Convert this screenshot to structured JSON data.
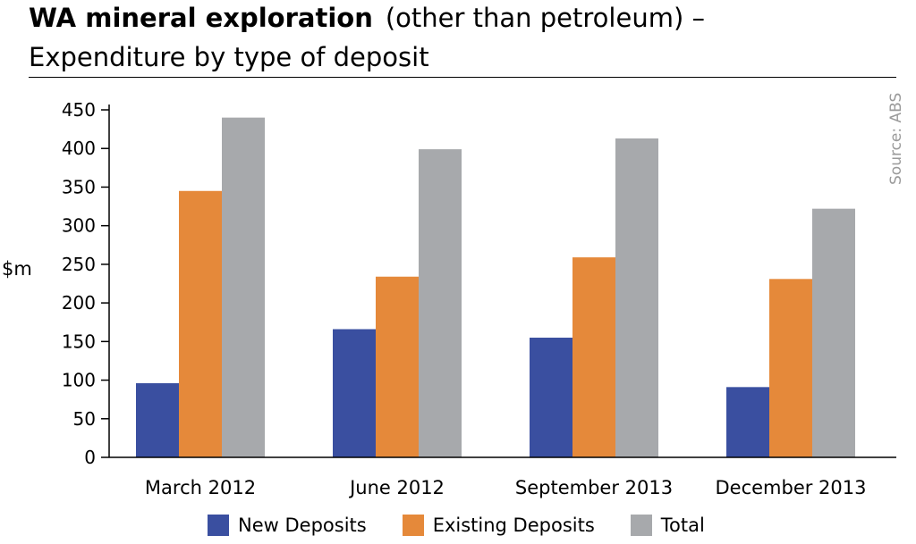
{
  "title": {
    "bold": "WA mineral exploration",
    "rest": "(other than petroleum) –",
    "line2": "Expenditure by type of deposit"
  },
  "source": "Source: ABS",
  "chart_data": {
    "type": "bar",
    "title": "WA mineral exploration (other than petroleum) – Expenditure by type of deposit",
    "ylabel": "$m",
    "xlabel": "",
    "categories": [
      "March 2012",
      "June 2012",
      "September 2013",
      "December 2013"
    ],
    "series": [
      {
        "name": "New Deposits",
        "color": "#3a4fa0",
        "values": [
          96,
          166,
          155,
          91
        ]
      },
      {
        "name": "Existing Deposits",
        "color": "#e5893a",
        "values": [
          345,
          234,
          259,
          231
        ]
      },
      {
        "name": "Total",
        "color": "#a7a9ac",
        "values": [
          440,
          399,
          413,
          322
        ]
      }
    ],
    "ylim": [
      0,
      450
    ],
    "yticks": [
      0,
      50,
      100,
      150,
      200,
      250,
      300,
      350,
      400,
      450
    ],
    "grid": false,
    "legend_position": "bottom"
  }
}
